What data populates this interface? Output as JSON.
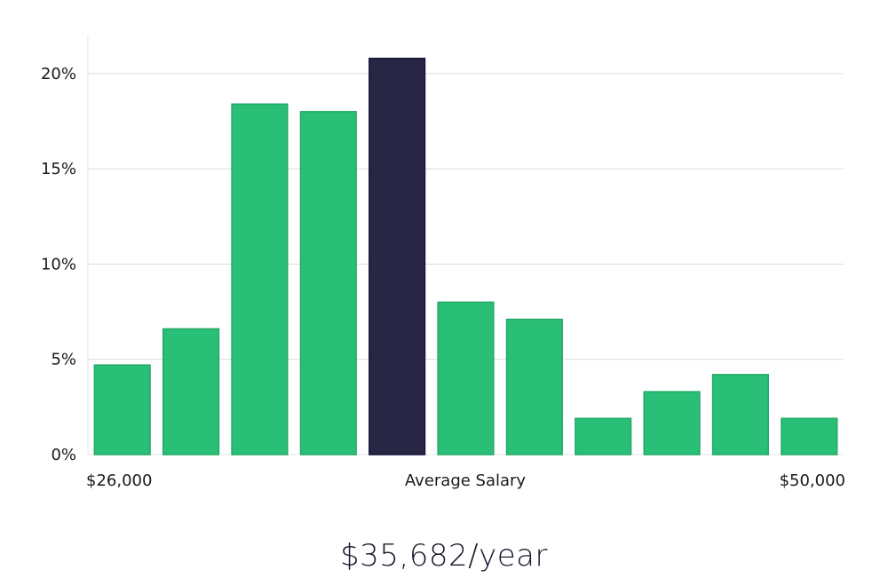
{
  "chart_data": {
    "type": "bar",
    "values": [
      4.7,
      6.6,
      18.4,
      18.0,
      20.8,
      8.0,
      7.1,
      1.9,
      3.3,
      4.2,
      1.9
    ],
    "highlight_index": 4,
    "ylim": [
      0,
      22
    ],
    "yticks": [
      0,
      5,
      10,
      15,
      20
    ],
    "ytick_format": "%",
    "grid": true,
    "x_labels": {
      "left": "$26,000",
      "center": "Average Salary",
      "right": "$50,000"
    }
  },
  "colors": {
    "bar": "#2abf77",
    "bar_stroke": "#22a866",
    "highlight": "#282545",
    "highlight_stroke": "#16143a",
    "grid": "#dcdcdc",
    "axis": "#e6e6e6"
  },
  "summary": {
    "salary_text": "$35,682/year"
  }
}
